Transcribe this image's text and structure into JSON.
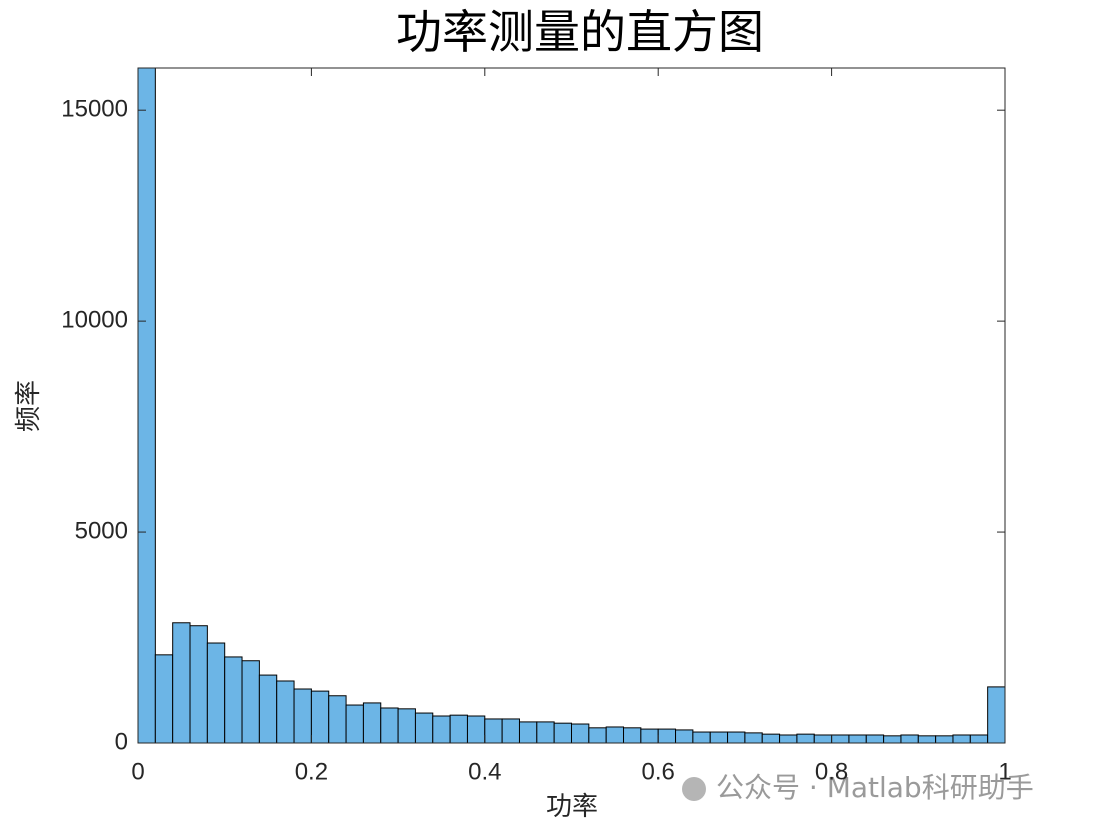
{
  "chart_data": {
    "type": "histogram",
    "title": "功率测量的直方图",
    "xlabel": "功率",
    "ylabel": "频率",
    "watermark": "公众号 · Matlab科研助手",
    "color": "#6cb5e6",
    "edgecolor": "#000000",
    "bins": [
      0,
      0.02,
      0.04,
      0.06,
      0.08,
      0.1,
      0.12,
      0.14,
      0.16,
      0.18,
      0.2,
      0.22,
      0.24,
      0.26,
      0.28,
      0.3,
      0.32,
      0.34,
      0.36,
      0.38,
      0.4,
      0.42,
      0.44,
      0.46,
      0.48,
      0.5,
      0.52,
      0.54,
      0.56,
      0.58,
      0.6,
      0.62,
      0.64,
      0.66,
      0.68,
      0.7,
      0.72,
      0.74,
      0.76,
      0.78,
      0.8,
      0.82,
      0.84,
      0.86,
      0.88,
      0.9,
      0.92,
      0.94,
      0.96,
      0.98,
      1
    ],
    "counts": [
      16000,
      2090,
      2850,
      2780,
      2370,
      2040,
      1950,
      1610,
      1470,
      1280,
      1230,
      1120,
      900,
      950,
      830,
      810,
      710,
      640,
      660,
      640,
      570,
      570,
      500,
      500,
      470,
      450,
      360,
      380,
      360,
      330,
      330,
      310,
      260,
      260,
      260,
      240,
      210,
      190,
      210,
      190,
      190,
      190,
      190,
      170,
      190,
      170,
      170,
      190,
      190,
      1330
    ],
    "xlim": [
      0,
      1
    ],
    "ylim": [
      0,
      16000
    ],
    "xticks": [
      0,
      0.2,
      0.4,
      0.6,
      0.8,
      1
    ],
    "yticks": [
      0,
      5000,
      10000,
      15000
    ]
  }
}
